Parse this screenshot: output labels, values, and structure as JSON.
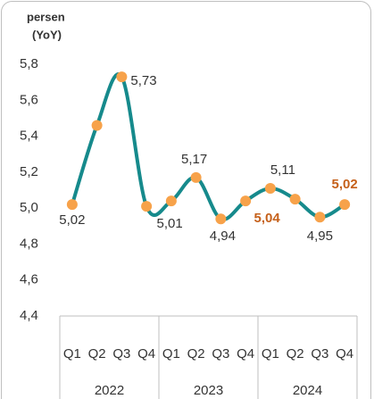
{
  "chart_data": {
    "type": "line",
    "y_label": [
      "persen",
      "(YoY)"
    ],
    "categories": [
      "Q1",
      "Q2",
      "Q3",
      "Q4",
      "Q1",
      "Q2",
      "Q3",
      "Q4",
      "Q1",
      "Q2",
      "Q3",
      "Q4"
    ],
    "group_labels": [
      "2022",
      "2023",
      "2024"
    ],
    "series": [
      {
        "name": "YoY",
        "color": "#168a8c",
        "marker_color": "#f7a24a",
        "values": [
          5.02,
          5.46,
          5.73,
          5.01,
          5.04,
          5.17,
          4.94,
          5.04,
          5.11,
          5.05,
          4.95,
          5.02
        ],
        "value_labels": [
          "5,02",
          null,
          "5,73",
          "5,01",
          null,
          "5,17",
          "4,94",
          "5,04",
          "5,11",
          null,
          "4,95",
          "5,02"
        ],
        "value_label_colors": [
          "#333333",
          null,
          "#333333",
          "#333333",
          null,
          "#333333",
          "#333333",
          "#c5601a",
          "#333333",
          null,
          "#333333",
          "#c5601a"
        ]
      }
    ],
    "ylim": [
      4.4,
      5.8
    ],
    "yticks": [
      {
        "value": 4.4,
        "label": "4,4"
      },
      {
        "value": 4.6,
        "label": "4,6"
      },
      {
        "value": 4.8,
        "label": "4,8"
      },
      {
        "value": 5.0,
        "label": "5,0"
      },
      {
        "value": 5.2,
        "label": "5,2"
      },
      {
        "value": 5.4,
        "label": "5,4"
      },
      {
        "value": 5.6,
        "label": "5,6"
      },
      {
        "value": 5.8,
        "label": "5,8"
      }
    ]
  }
}
